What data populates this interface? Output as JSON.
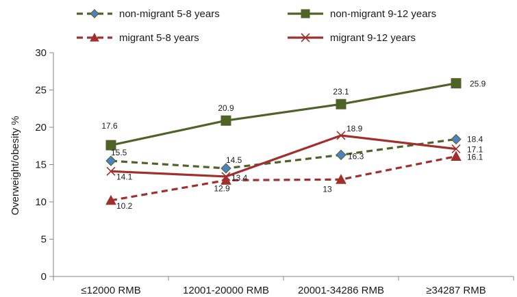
{
  "chart_data": {
    "type": "line",
    "categories": [
      "≤12000 RMB",
      "12001-20000 RMB",
      "20001-34286 RMB",
      "≥34287 RMB"
    ],
    "ylabel": "Overweight/obesity %",
    "xlabel": "",
    "ylim": [
      0,
      30
    ],
    "yticks": [
      "0",
      "5",
      "10",
      "15",
      "20",
      "25",
      "30"
    ],
    "grid": false,
    "legend_position": "top",
    "series": [
      {
        "name": "non-migrant 5-8 years",
        "values": [
          15.5,
          14.5,
          16.3,
          18.4
        ],
        "labels": [
          "15.5",
          "14.5",
          "16.3",
          "18.4"
        ],
        "color": "#4f6228",
        "marker_color": "#4f81bd",
        "marker": "diamond",
        "dashed": true
      },
      {
        "name": "non-migrant 9-12 years",
        "values": [
          17.6,
          20.9,
          23.1,
          25.9
        ],
        "labels": [
          "17.6",
          "20.9",
          "23.1",
          "25.9"
        ],
        "color": "#4f6228",
        "marker_color": "#4f6228",
        "marker": "square",
        "dashed": false
      },
      {
        "name": "migrant 5-8 years",
        "values": [
          10.2,
          12.9,
          13,
          16.1
        ],
        "labels": [
          "10.2",
          "12.9",
          "13",
          "16.1"
        ],
        "color": "#a0302d",
        "marker_color": "#a0302d",
        "marker": "triangle",
        "dashed": true
      },
      {
        "name": "migrant 9-12 years",
        "values": [
          14.1,
          13.4,
          18.9,
          17.1
        ],
        "labels": [
          "14.1",
          "13.4",
          "18.9",
          "17.1"
        ],
        "color": "#a0302d",
        "marker_color": "#a0302d",
        "marker": "x",
        "dashed": false
      }
    ]
  }
}
